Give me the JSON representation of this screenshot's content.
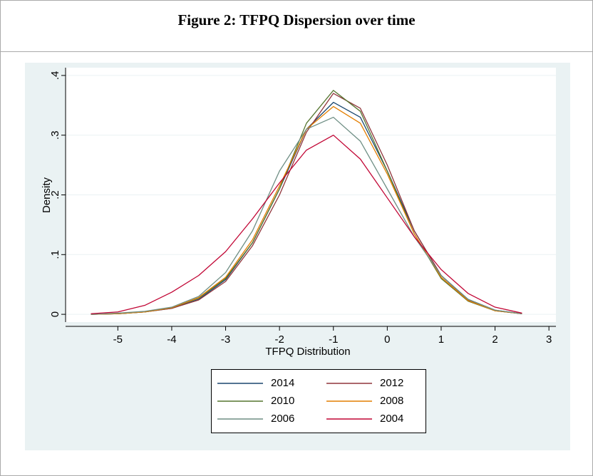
{
  "chart_data": {
    "type": "line",
    "title": "Figure 2: TFPQ Dispersion over time",
    "x_label": "TFPQ Distribution",
    "y_label": "Density",
    "x": [
      -5.5,
      -5,
      -4.5,
      -4,
      -3.5,
      -3,
      -2.5,
      -2,
      -1.5,
      -1,
      -0.5,
      0,
      0.5,
      1,
      1.5,
      2,
      2.5
    ],
    "series": [
      {
        "name": "2014",
        "color": "#1a476f",
        "values": [
          0,
          0.001,
          0.004,
          0.01,
          0.025,
          0.058,
          0.12,
          0.21,
          0.31,
          0.355,
          0.33,
          0.24,
          0.14,
          0.065,
          0.025,
          0.007,
          0.001
        ]
      },
      {
        "name": "2012",
        "color": "#90353b",
        "values": [
          0,
          0.001,
          0.004,
          0.01,
          0.024,
          0.055,
          0.115,
          0.2,
          0.305,
          0.37,
          0.345,
          0.25,
          0.14,
          0.065,
          0.024,
          0.006,
          0.001
        ]
      },
      {
        "name": "2010",
        "color": "#55752f",
        "values": [
          0,
          0.001,
          0.004,
          0.011,
          0.027,
          0.06,
          0.12,
          0.21,
          0.32,
          0.375,
          0.34,
          0.24,
          0.135,
          0.06,
          0.022,
          0.006,
          0.001
        ]
      },
      {
        "name": "2008",
        "color": "#e37e00",
        "values": [
          0,
          0.001,
          0.004,
          0.011,
          0.028,
          0.062,
          0.125,
          0.215,
          0.31,
          0.348,
          0.32,
          0.235,
          0.135,
          0.062,
          0.023,
          0.006,
          0.001
        ]
      },
      {
        "name": "2006",
        "color": "#6e8e84",
        "values": [
          0,
          0.002,
          0.005,
          0.012,
          0.03,
          0.07,
          0.14,
          0.24,
          0.31,
          0.33,
          0.29,
          0.21,
          0.13,
          0.065,
          0.025,
          0.007,
          0.001
        ]
      },
      {
        "name": "2004",
        "color": "#c10534",
        "values": [
          0.001,
          0.004,
          0.015,
          0.037,
          0.065,
          0.105,
          0.16,
          0.22,
          0.275,
          0.3,
          0.26,
          0.195,
          0.13,
          0.075,
          0.035,
          0.012,
          0.002
        ]
      }
    ],
    "xlim": [
      -5.97,
      3.13
    ],
    "xticks": [
      -5,
      -4,
      -3,
      -2,
      -1,
      0,
      1,
      2,
      3
    ],
    "ylim": [
      -0.013,
      0.413
    ],
    "yticks": [
      0,
      {
        "value": 0.1,
        "label": ".1"
      },
      {
        "value": 0.2,
        "label": ".2"
      },
      {
        "value": 0.3,
        "label": ".3"
      },
      {
        "value": 0.4,
        "label": ".4"
      }
    ],
    "grid": true
  }
}
